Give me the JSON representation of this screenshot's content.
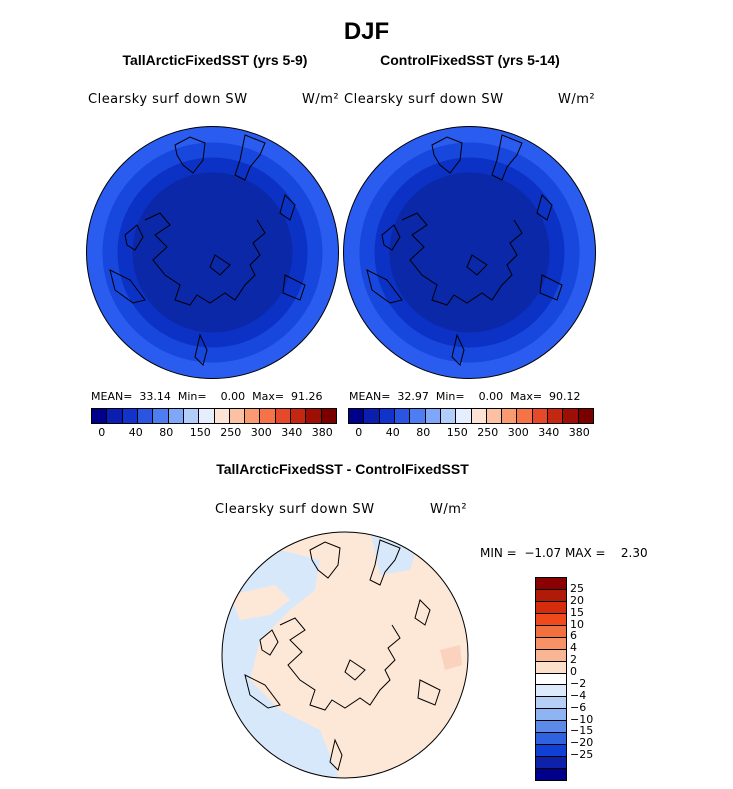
{
  "figure_title": "DJF",
  "panels": [
    {
      "title": "TallArcticFixedSST (yrs 5-9)",
      "variable": "Clearsky surf down SW",
      "units": "W/m²",
      "stats": "MEAN=  33.14  Min=    0.00  Max=  91.26"
    },
    {
      "title": "ControlFixedSST (yrs 5-14)",
      "variable": "Clearsky surf down SW",
      "units": "W/m²",
      "stats": "MEAN=  32.97  Min=    0.00  Max=  90.12"
    }
  ],
  "diff_panel": {
    "title": "TallArcticFixedSST - ControlFixedSST",
    "variable": "Clearsky surf down SW",
    "units": "W/m²",
    "minmax": "MIN =  −1.07 MAX =    2.30"
  },
  "colorbar_main": {
    "colors": [
      "#00008b",
      "#0a1fb0",
      "#1133cc",
      "#2a55e0",
      "#4d7df0",
      "#7fa6f7",
      "#b3cdfb",
      "#e6eefd",
      "#fde3d3",
      "#fcc0a2",
      "#f99a70",
      "#f57347",
      "#e5492a",
      "#c42812",
      "#9d0e04",
      "#7a0000"
    ],
    "ticks": [
      "0",
      "40",
      "80",
      "150",
      "250",
      "300",
      "340",
      "380"
    ]
  },
  "colorbar_diff": {
    "colors": [
      "#8b0000",
      "#b01a08",
      "#d62c0e",
      "#f04a1c",
      "#f46f3e",
      "#f69266",
      "#f9b694",
      "#fde0ca",
      "#ffffff",
      "#dceafb",
      "#b5cff6",
      "#8eb4f1",
      "#5c8ae8",
      "#2e62e0",
      "#1140d6",
      "#0d22a8",
      "#00008b"
    ],
    "ticks": [
      "25",
      "20",
      "15",
      "10",
      "6",
      "4",
      "2",
      "0",
      "−2",
      "−4",
      "−6",
      "−10",
      "−15",
      "−20",
      "−25"
    ]
  },
  "map_colors": {
    "ring_outer": "#2a5cf0",
    "ring_mid": "#1747dd",
    "ring_inner": "#0b32c4",
    "core": "#0a28a8",
    "diff_pos": "#fde8d8",
    "diff_neg": "#d8e8fb",
    "diff_pos2": "#fbd2bd"
  }
}
